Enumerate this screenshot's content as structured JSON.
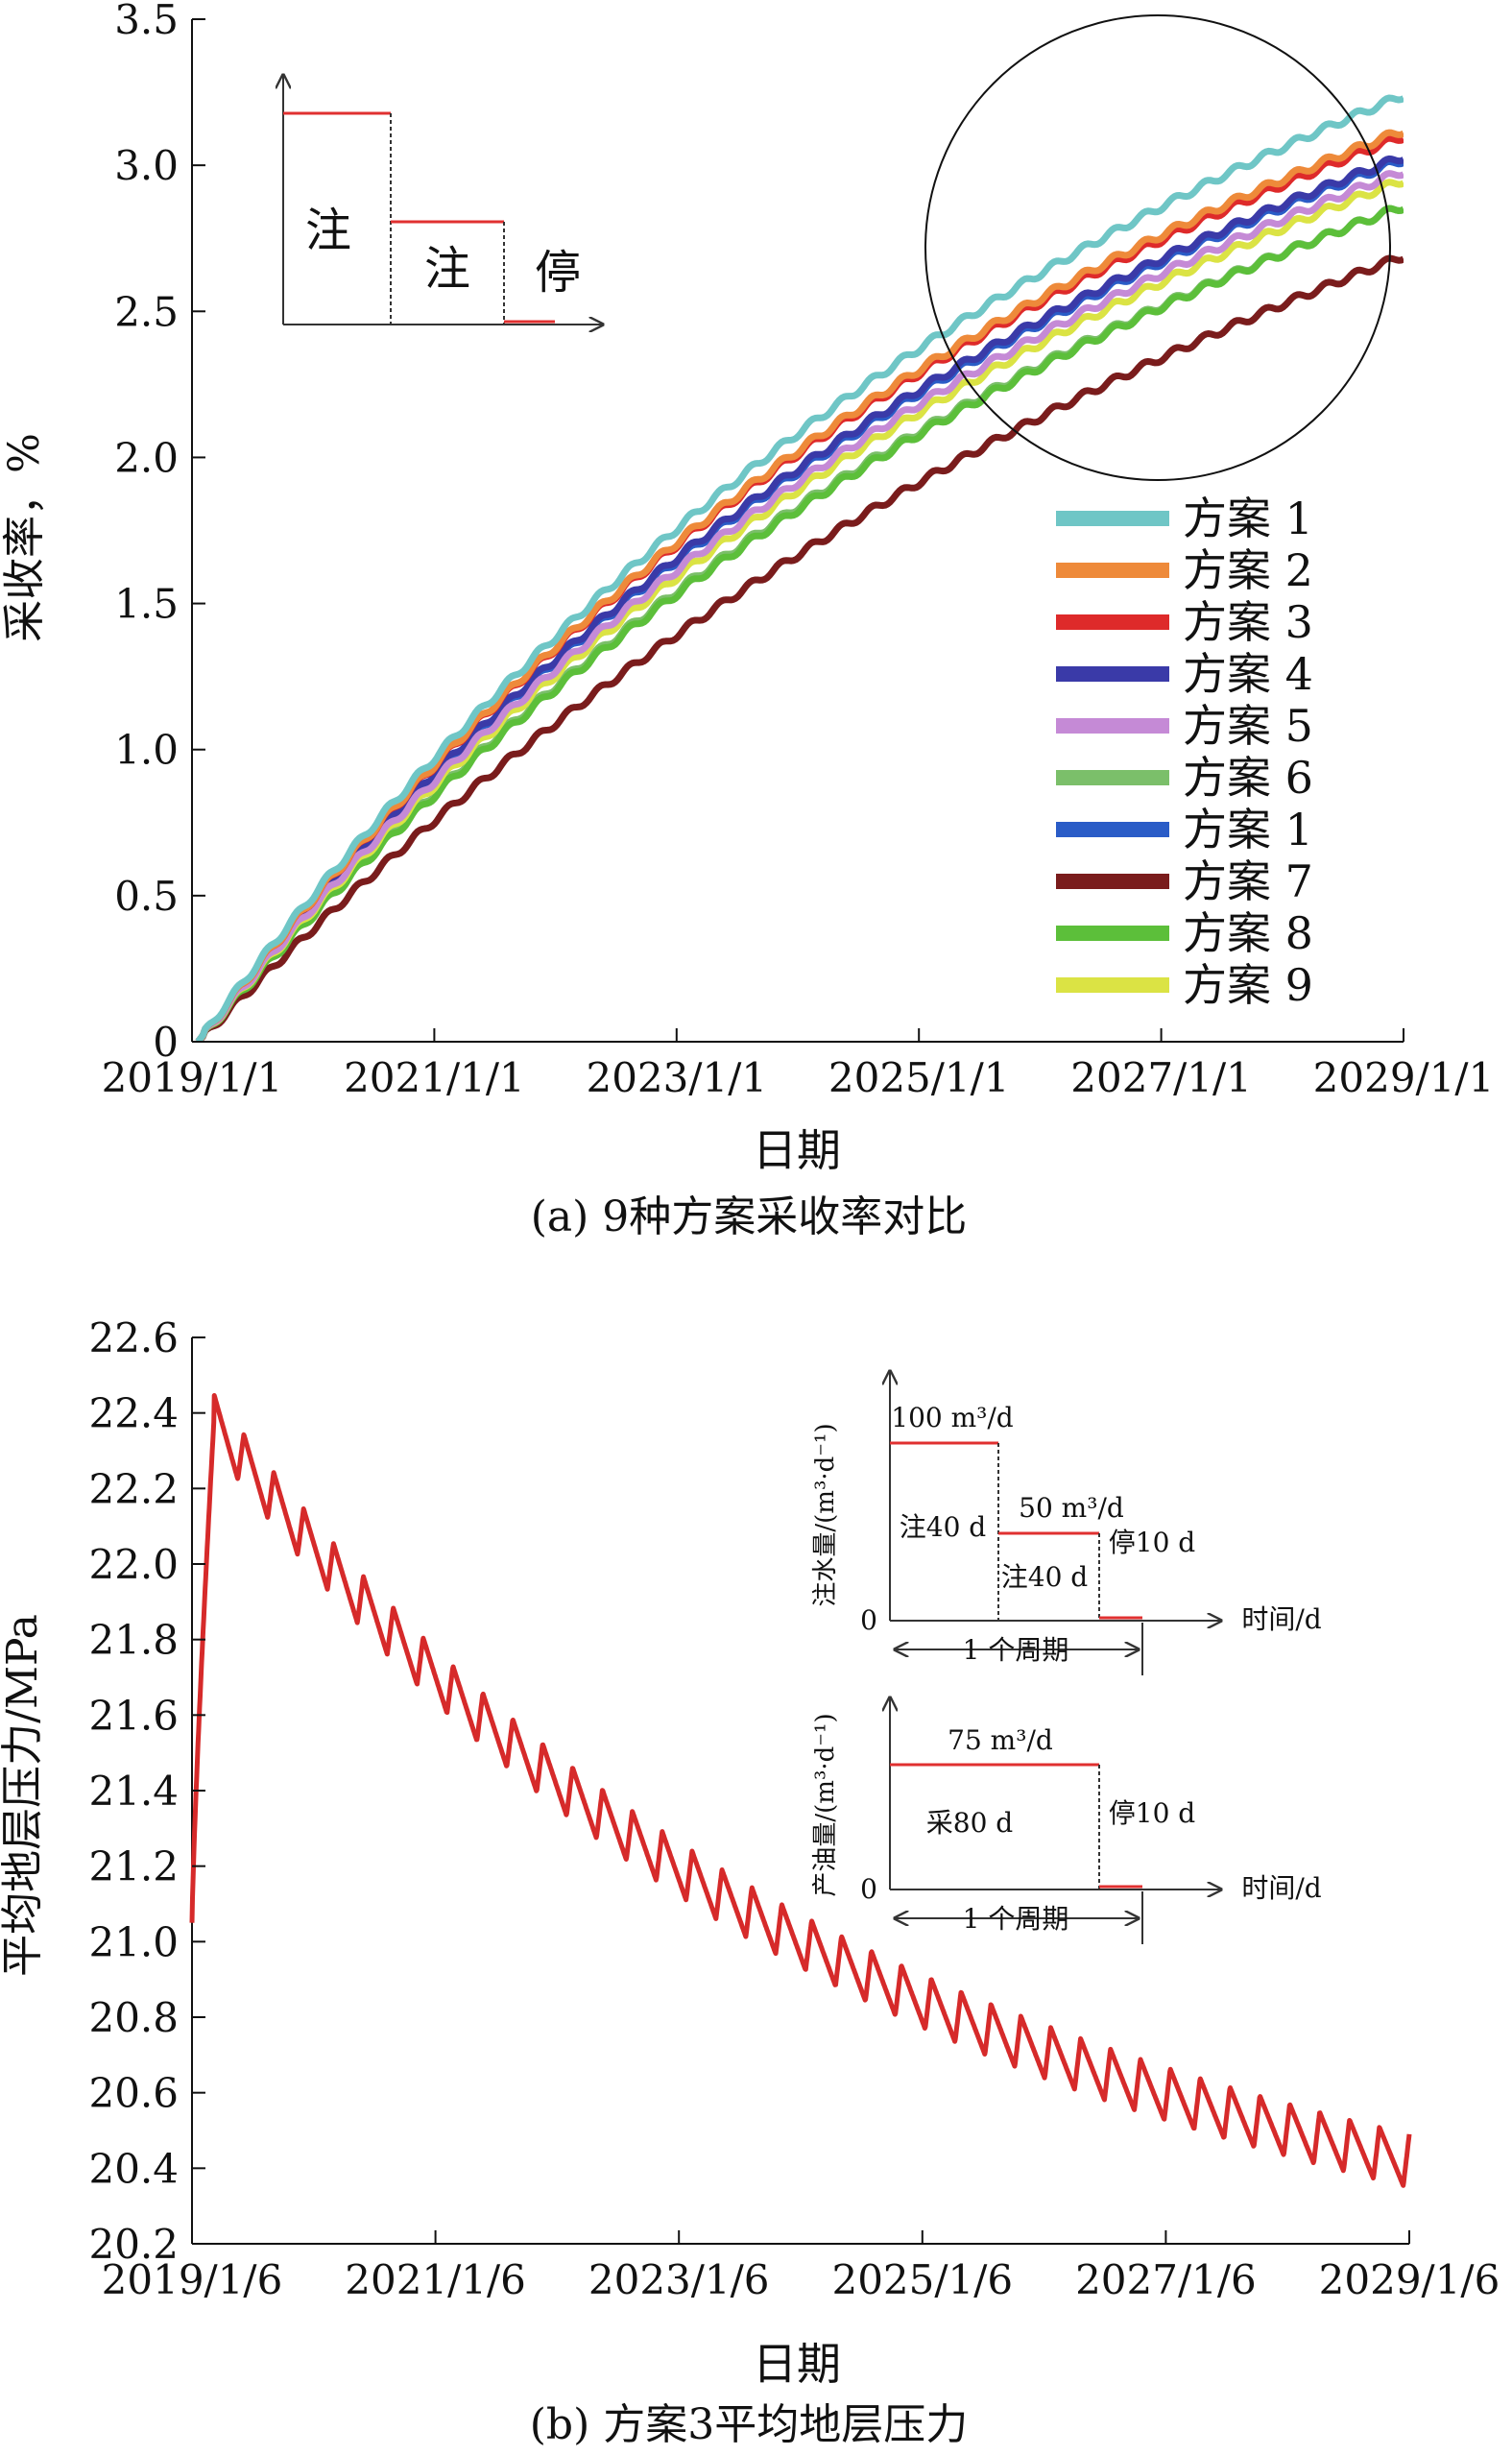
{
  "chart_data": [
    {
      "type": "line",
      "panel": "a",
      "caption": "(a) 9种方案采收率对比",
      "xlabel": "日期",
      "ylabel": "采收率，%",
      "ylim": [
        0,
        3.5
      ],
      "yticks": [
        "0",
        "0.5",
        "1.0",
        "1.5",
        "2.0",
        "2.5",
        "3.0",
        "3.5"
      ],
      "xticks": [
        "2019/1/1",
        "2021/1/1",
        "2023/1/1",
        "2025/1/1",
        "2027/1/1",
        "2029/1/1"
      ],
      "x_range_years": [
        2019,
        2029
      ],
      "legend_position": "right",
      "series": [
        {
          "name": "方案 1",
          "color": "#6fc6c6",
          "final_value": 3.24,
          "k": 0.12
        },
        {
          "name": "方案 2",
          "color": "#ee8a3a",
          "final_value": 3.12,
          "k": 0.125
        },
        {
          "name": "方案 3",
          "color": "#de2a2a",
          "final_value": 3.1,
          "k": 0.126
        },
        {
          "name": "方案 4",
          "color": "#3a3aa8",
          "final_value": 3.03,
          "k": 0.124
        },
        {
          "name": "方案 5",
          "color": "#c58ad6",
          "final_value": 2.98,
          "k": 0.12
        },
        {
          "name": "方案 6",
          "color": "#7bbf6a",
          "final_value": 2.86,
          "k": 0.118
        },
        {
          "name": "方案 1",
          "color": "#2a5cc7",
          "final_value": 3.02,
          "k": 0.123
        },
        {
          "name": "方案 7",
          "color": "#7a1c1c",
          "final_value": 2.69,
          "k": 0.1
        },
        {
          "name": "方案 8",
          "color": "#5cbf3a",
          "final_value": 2.86,
          "k": 0.115
        },
        {
          "name": "方案 9",
          "color": "#dbe344",
          "final_value": 2.95,
          "k": 0.118
        }
      ],
      "inset": {
        "label_1": "注",
        "label_2": "注",
        "label_3": "停"
      }
    },
    {
      "type": "line",
      "panel": "b",
      "caption": "(b) 方案3平均地层压力",
      "xlabel": "日期",
      "ylabel": "平均地层压力/MPa",
      "ylim": [
        20.2,
        22.6
      ],
      "yticks": [
        "20.2",
        "20.4",
        "20.6",
        "20.8",
        "21.0",
        "21.2",
        "21.4",
        "21.6",
        "21.8",
        "22.0",
        "22.2",
        "22.4",
        "22.6"
      ],
      "xticks": [
        "2019/1/6",
        "2021/1/6",
        "2023/1/6",
        "2025/1/6",
        "2027/1/6",
        "2029/1/6"
      ],
      "x_range_years": [
        2019,
        2029
      ],
      "series": [
        {
          "name": "方案3",
          "color": "#d62a2a",
          "start": 21.05,
          "peak": 22.38,
          "peak_year": 2019.18,
          "end": 20.42,
          "cycles": 40,
          "amplitude": 0.14
        }
      ],
      "inset_injection": {
        "ylabel": "注水量/(m³·d⁻¹)",
        "rate_1": "100 m³/d",
        "rate_2": "50 m³/d",
        "phase_1": "注40 d",
        "phase_2": "注40 d",
        "phase_3": "停10 d",
        "zero": "0",
        "xlabel": "时间/d",
        "period": "1 个周期"
      },
      "inset_production": {
        "ylabel": "产油量/(m³·d⁻¹)",
        "rate": "75 m³/d",
        "phase_1": "采80 d",
        "phase_2": "停10 d",
        "zero": "0",
        "xlabel": "时间/d",
        "period": "1 个周期"
      }
    }
  ]
}
